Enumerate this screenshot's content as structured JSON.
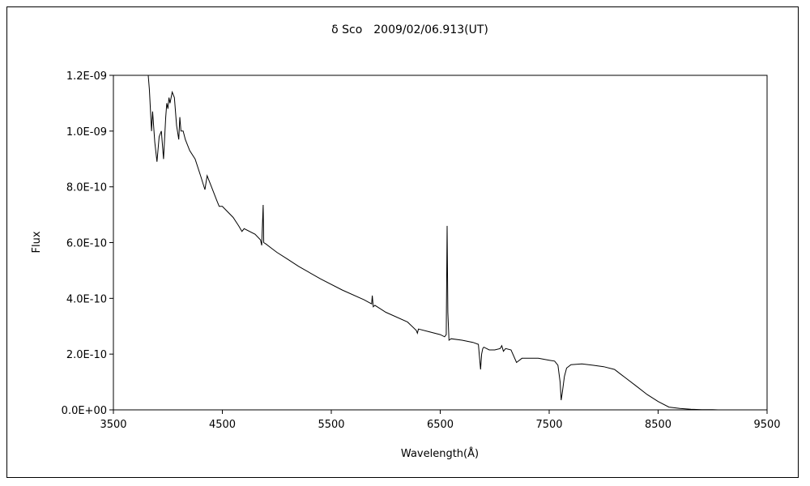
{
  "chart_data": {
    "type": "line",
    "title": "δ Sco　2009/02/06.913(UT)",
    "xlabel": "Wavelength(Å)",
    "ylabel": "Flux",
    "xlim": [
      3500,
      9500
    ],
    "ylim": [
      0,
      1.2e-09
    ],
    "xticks": [
      "3500",
      "4500",
      "5500",
      "6500",
      "7500",
      "8500",
      "9500"
    ],
    "yticks": [
      "0.0E+00",
      "2.0E-10",
      "4.0E-10",
      "6.0E-10",
      "8.0E-10",
      "1.0E-09",
      "1.2E-09"
    ],
    "grid": false,
    "legend": "none",
    "line_color": "#000000",
    "series": [
      {
        "x": [
          3820,
          3830,
          3850,
          3860,
          3880,
          3900,
          3920,
          3940,
          3960,
          3980,
          3990,
          4000,
          4010,
          4020,
          4040,
          4060,
          4080,
          4100,
          4110,
          4120,
          4140,
          4160,
          4200,
          4250,
          4300,
          4340,
          4360,
          4400,
          4450,
          4471,
          4500,
          4600,
          4650,
          4680,
          4700,
          4800,
          4850,
          4861,
          4875,
          4880,
          4900,
          4950,
          5000,
          5100,
          5200,
          5400,
          5600,
          5800,
          5870,
          5876,
          5885,
          5900,
          6000,
          6200,
          6280,
          6290,
          6300,
          6400,
          6500,
          6540,
          6555,
          6563,
          6570,
          6580,
          6600,
          6700,
          6800,
          6850,
          6870,
          6880,
          6890,
          6900,
          6950,
          7000,
          7050,
          7065,
          7080,
          7100,
          7150,
          7200,
          7250,
          7300,
          7400,
          7500,
          7550,
          7580,
          7600,
          7610,
          7620,
          7640,
          7660,
          7700,
          7800,
          7900,
          8000,
          8100,
          8150,
          8200,
          8300,
          8400,
          8500,
          8600,
          8700,
          8800,
          8900,
          9000,
          9050
        ],
        "y": [
          1.2e-09,
          1.15e-09,
          1e-09,
          1.07e-09,
          9.6e-10,
          8.9e-10,
          9.8e-10,
          1e-09,
          9e-10,
          1.05e-09,
          1.1e-09,
          1.08e-09,
          1.12e-09,
          1.1e-09,
          1.14e-09,
          1.12e-09,
          1.02e-09,
          9.7e-10,
          1.05e-09,
          1e-09,
          1e-09,
          9.7e-10,
          9.3e-10,
          9e-10,
          8.4e-10,
          7.9e-10,
          8.4e-10,
          8e-10,
          7.5e-10,
          7.3e-10,
          7.3e-10,
          6.9e-10,
          6.6e-10,
          6.4e-10,
          6.5e-10,
          6.3e-10,
          6.1e-10,
          5.9e-10,
          7.35e-10,
          6e-10,
          5.95e-10,
          5.8e-10,
          5.65e-10,
          5.4e-10,
          5.15e-10,
          4.7e-10,
          4.3e-10,
          3.95e-10,
          3.8e-10,
          4.1e-10,
          3.7e-10,
          3.75e-10,
          3.5e-10,
          3.15e-10,
          2.85e-10,
          2.75e-10,
          2.9e-10,
          2.8e-10,
          2.7e-10,
          2.62e-10,
          2.7e-10,
          6.6e-10,
          3.5e-10,
          2.5e-10,
          2.55e-10,
          2.5e-10,
          2.42e-10,
          2.35e-10,
          1.45e-10,
          2e-10,
          2.2e-10,
          2.25e-10,
          2.15e-10,
          2.15e-10,
          2.2e-10,
          2.3e-10,
          2.1e-10,
          2.2e-10,
          2.15e-10,
          1.7e-10,
          1.85e-10,
          1.85e-10,
          1.85e-10,
          1.78e-10,
          1.75e-10,
          1.6e-10,
          1e-10,
          3.5e-11,
          6e-11,
          1.2e-10,
          1.5e-10,
          1.62e-10,
          1.65e-10,
          1.6e-10,
          1.55e-10,
          1.45e-10,
          1.3e-10,
          1.15e-10,
          8.5e-11,
          5.5e-11,
          3e-11,
          1e-11,
          5e-12,
          2e-12,
          1e-12,
          5e-13,
          0
        ]
      }
    ]
  }
}
